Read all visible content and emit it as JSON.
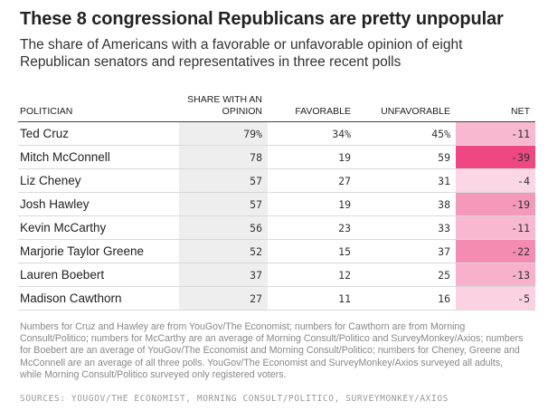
{
  "title": "These 8 congressional Republicans are pretty unpopular",
  "subtitle": "The share of Americans with a favorable or unfavorable opinion of eight Republican senators and representatives in three recent polls",
  "columns": {
    "name": "POLITICIAN",
    "share": "SHARE WITH AN OPINION",
    "fav": "FAVORABLE",
    "unfav": "UNFAVORABLE",
    "net": "NET"
  },
  "chart_data": {
    "type": "table",
    "title": "These 8 congressional Republicans are pretty unpopular",
    "columns": [
      "POLITICIAN",
      "SHARE WITH AN OPINION",
      "FAVORABLE",
      "UNFAVORABLE",
      "NET"
    ],
    "rows": [
      {
        "name": "Ted Cruz",
        "share": "79%",
        "fav": "34%",
        "unfav": "45%",
        "net": "-11",
        "net_value": -11
      },
      {
        "name": "Mitch McConnell",
        "share": "78",
        "fav": "19",
        "unfav": "59",
        "net": "-39",
        "net_value": -39
      },
      {
        "name": "Liz Cheney",
        "share": "57",
        "fav": "27",
        "unfav": "31",
        "net": "-4",
        "net_value": -4
      },
      {
        "name": "Josh Hawley",
        "share": "57",
        "fav": "19",
        "unfav": "38",
        "net": "-19",
        "net_value": -19
      },
      {
        "name": "Kevin McCarthy",
        "share": "56",
        "fav": "23",
        "unfav": "33",
        "net": "-11",
        "net_value": -11
      },
      {
        "name": "Marjorie Taylor Greene",
        "share": "52",
        "fav": "15",
        "unfav": "37",
        "net": "-22",
        "net_value": -22
      },
      {
        "name": "Lauren Boebert",
        "share": "37",
        "fav": "12",
        "unfav": "25",
        "net": "-13",
        "net_value": -13
      },
      {
        "name": "Madison Cawthorn",
        "share": "27",
        "fav": "11",
        "unfav": "16",
        "net": "-5",
        "net_value": -5
      }
    ],
    "net_color_scale": {
      "light": "#fce6ef",
      "dark": "#ee4782"
    }
  },
  "notes": "Numbers for Cruz and Hawley are from YouGov/The Economist; numbers for Cawthorn are from Morning Consult/Politico; numbers for McCarthy are an average of Morning Consult/Politico and SurveyMonkey/Axios; numbers for Boebert are an average of YouGov/The Economist and Morning Consult/Politico; numbers for Cheney, Greene and McConnell are an average of all three polls. YouGov/The Economist and SurveyMonkey/Axios surveyed all adults, while Morning Consult/Politico surveyed only registered voters.",
  "sources": "SOURCES: YOUGOV/THE ECONOMIST, MORNING CONSULT/POLITICO, SURVEYMONKEY/AXIOS"
}
